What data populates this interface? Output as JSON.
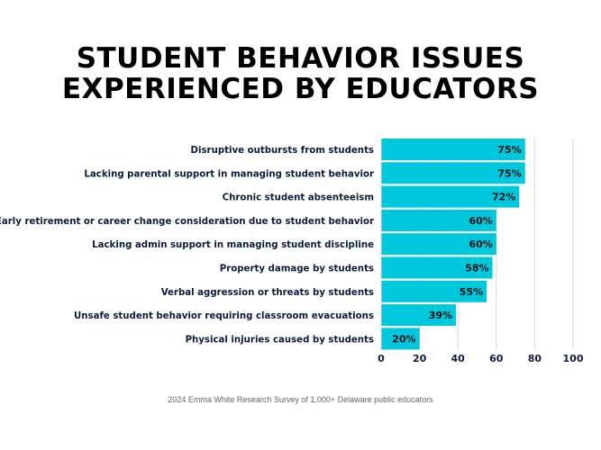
{
  "chart_data": {
    "type": "bar",
    "orientation": "horizontal",
    "title": [
      "STUDENT BEHAVIOR ISSUES",
      "EXPERIENCED BY EDUCATORS"
    ],
    "categories": [
      "Disruptive outbursts from students",
      "Lacking parental support in managing student behavior",
      "Chronic student absenteeism",
      "Early retirement or career change consideration due to student behavior",
      "Lacking admin support in managing student discipline",
      "Property damage by students",
      "Verbal aggression or threats by students",
      "Unsafe student behavior requiring classroom evacuations",
      "Physical injuries caused by students"
    ],
    "values": [
      75,
      75,
      72,
      60,
      60,
      58,
      55,
      39,
      20
    ],
    "data_labels": [
      "75%",
      "75%",
      "72%",
      "60%",
      "60%",
      "58%",
      "55%",
      "39%",
      "20%"
    ],
    "xlim": [
      0,
      100
    ],
    "xticks": [
      "0",
      "20",
      "40",
      "60",
      "80",
      "100"
    ],
    "grid": true,
    "colors": {
      "bar": "#00C8DC",
      "label": "#0D1B3E",
      "grid": "#D9D9D9"
    },
    "footnote": "2024 Emma White Research Survey of 1,000+ Delaware public educators"
  }
}
